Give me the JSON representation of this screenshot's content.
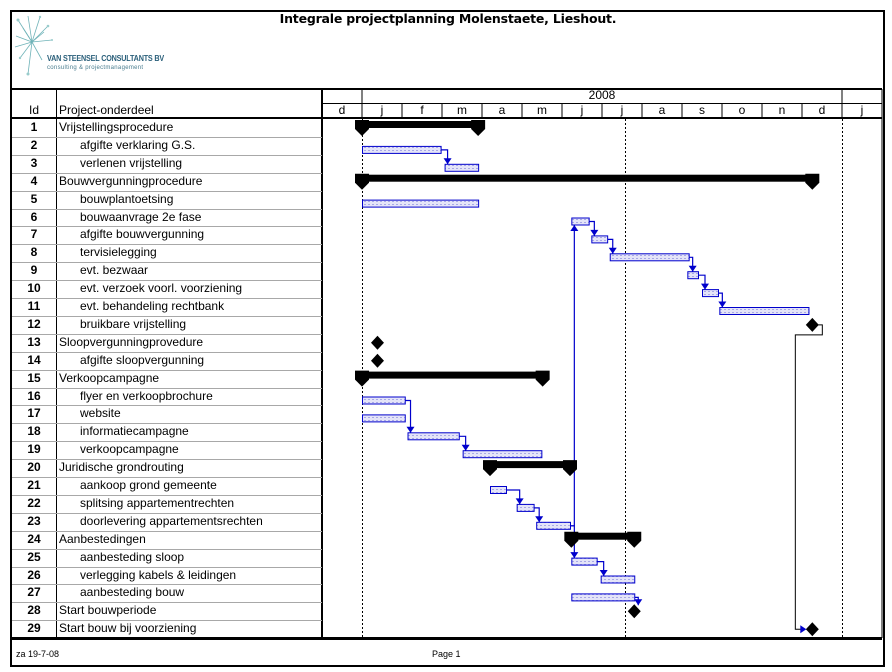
{
  "header": {
    "title": "Integrale projectplanning Molenstaete, Lieshout.",
    "logo_name": "VAN STEENSEL CONSULTANTS BV",
    "logo_tagline": "consulting & projectmanagement"
  },
  "table": {
    "col_id": "Id",
    "col_name": "Project-onderdeel"
  },
  "chart_data": {
    "type": "gantt",
    "year_label": "2008",
    "timescale": [
      {
        "label": "d",
        "year": 2007,
        "month": 12
      },
      {
        "label": "j",
        "year": 2008,
        "month": 1
      },
      {
        "label": "f",
        "year": 2008,
        "month": 2
      },
      {
        "label": "m",
        "year": 2008,
        "month": 3
      },
      {
        "label": "a",
        "year": 2008,
        "month": 4
      },
      {
        "label": "m",
        "year": 2008,
        "month": 5
      },
      {
        "label": "j",
        "year": 2008,
        "month": 6
      },
      {
        "label": "j",
        "year": 2008,
        "month": 7
      },
      {
        "label": "a",
        "year": 2008,
        "month": 8
      },
      {
        "label": "s",
        "year": 2008,
        "month": 9
      },
      {
        "label": "o",
        "year": 2008,
        "month": 10
      },
      {
        "label": "n",
        "year": 2008,
        "month": 11
      },
      {
        "label": "d",
        "year": 2008,
        "month": 12
      },
      {
        "label": "j",
        "year": 2009,
        "month": 1
      }
    ],
    "date_markers": [
      "2008-01-01",
      "2008-07-19",
      "2009-01-01"
    ],
    "tasks": [
      {
        "id": "1",
        "name": "Vrijstellingsprocedure",
        "level": 0,
        "type": "summary",
        "start": "2008-01-01",
        "finish": "2008-03-29"
      },
      {
        "id": "2",
        "name": "afgifte verklaring G.S.",
        "level": 1,
        "type": "task",
        "start": "2008-01-01",
        "finish": "2008-02-29"
      },
      {
        "id": "3",
        "name": "verlenen vrijstelling",
        "level": 1,
        "type": "task",
        "start": "2008-03-03",
        "finish": "2008-03-29"
      },
      {
        "id": "4",
        "name": "Bouwvergunningprocedure",
        "level": 0,
        "type": "summary",
        "start": "2008-01-01",
        "finish": "2008-12-09"
      },
      {
        "id": "5",
        "name": "bouwplantoetsing",
        "level": 1,
        "type": "task",
        "start": "2008-01-01",
        "finish": "2008-03-29"
      },
      {
        "id": "6",
        "name": "bouwaanvrage 2e fase",
        "level": 1,
        "type": "task",
        "start": "2008-06-08",
        "finish": "2008-06-21"
      },
      {
        "id": "7",
        "name": "afgifte bouwvergunning",
        "level": 1,
        "type": "task",
        "start": "2008-06-23",
        "finish": "2008-07-05"
      },
      {
        "id": "8",
        "name": "tervisielegging",
        "level": 1,
        "type": "task",
        "start": "2008-07-07",
        "finish": "2008-09-06"
      },
      {
        "id": "9",
        "name": "evt. bezwaar",
        "level": 1,
        "type": "task",
        "start": "2008-09-05",
        "finish": "2008-09-13"
      },
      {
        "id": "10",
        "name": "evt. verzoek voorl. voorziening",
        "level": 1,
        "type": "task",
        "start": "2008-09-16",
        "finish": "2008-09-28"
      },
      {
        "id": "11",
        "name": "evt. behandeling rechtbank",
        "level": 1,
        "type": "task",
        "start": "2008-09-29",
        "finish": "2008-12-06"
      },
      {
        "id": "12",
        "name": "bruikbare vrijstelling",
        "level": 1,
        "type": "milestone",
        "start": "2008-12-09",
        "finish": "2008-12-09"
      },
      {
        "id": "13",
        "name": "Sloopvergunningprovedure",
        "level": 0,
        "type": "milestone",
        "start": "2008-01-13",
        "finish": "2008-01-13"
      },
      {
        "id": "14",
        "name": "afgifte sloopvergunning",
        "level": 1,
        "type": "milestone",
        "start": "2008-01-13",
        "finish": "2008-01-13"
      },
      {
        "id": "15",
        "name": "Verkoopcampagne",
        "level": 0,
        "type": "summary",
        "start": "2008-01-01",
        "finish": "2008-05-17"
      },
      {
        "id": "16",
        "name": "flyer en verkoopbrochure",
        "level": 1,
        "type": "task",
        "start": "2008-01-01",
        "finish": "2008-02-03"
      },
      {
        "id": "17",
        "name": "website",
        "level": 1,
        "type": "task",
        "start": "2008-01-01",
        "finish": "2008-02-03"
      },
      {
        "id": "18",
        "name": "informatiecampagne",
        "level": 1,
        "type": "task",
        "start": "2008-02-05",
        "finish": "2008-03-14"
      },
      {
        "id": "19",
        "name": "verkoopcampagne",
        "level": 1,
        "type": "task",
        "start": "2008-03-17",
        "finish": "2008-05-16"
      },
      {
        "id": "20",
        "name": "Juridische grondrouting",
        "level": 0,
        "type": "summary",
        "start": "2008-04-07",
        "finish": "2008-06-07"
      },
      {
        "id": "21",
        "name": "aankoop grond gemeente",
        "level": 1,
        "type": "task",
        "start": "2008-04-07",
        "finish": "2008-04-19"
      },
      {
        "id": "22",
        "name": "splitsing appartementrechten",
        "level": 1,
        "type": "task",
        "start": "2008-04-27",
        "finish": "2008-05-10"
      },
      {
        "id": "23",
        "name": "doorlevering appartementsrechten",
        "level": 1,
        "type": "task",
        "start": "2008-05-12",
        "finish": "2008-06-07"
      },
      {
        "id": "24",
        "name": "Aanbestedingen",
        "level": 0,
        "type": "summary",
        "start": "2008-06-08",
        "finish": "2008-07-26"
      },
      {
        "id": "25",
        "name": "aanbesteding sloop",
        "level": 1,
        "type": "task",
        "start": "2008-06-08",
        "finish": "2008-06-27"
      },
      {
        "id": "26",
        "name": "verlegging kabels & leidingen",
        "level": 1,
        "type": "task",
        "start": "2008-06-30",
        "finish": "2008-07-26"
      },
      {
        "id": "27",
        "name": "aanbesteding bouw",
        "level": 1,
        "type": "task",
        "start": "2008-06-08",
        "finish": "2008-07-26"
      },
      {
        "id": "28",
        "name": "Start bouwperiode",
        "level": 0,
        "type": "milestone",
        "start": "2008-07-26",
        "finish": "2008-07-26"
      },
      {
        "id": "29",
        "name": "Start bouw bij voorziening",
        "level": 0,
        "type": "milestone",
        "start": "2008-12-09",
        "finish": "2008-12-09"
      }
    ],
    "links": [
      [
        "2",
        "3"
      ],
      [
        "6",
        "7"
      ],
      [
        "7",
        "8"
      ],
      [
        "8",
        "9"
      ],
      [
        "9",
        "10"
      ],
      [
        "10",
        "11"
      ],
      [
        "12",
        "29"
      ],
      [
        "16",
        "18"
      ],
      [
        "18",
        "19"
      ],
      [
        "21",
        "22"
      ],
      [
        "22",
        "23"
      ],
      [
        "23",
        "6"
      ],
      [
        "23",
        "25"
      ],
      [
        "25",
        "26"
      ],
      [
        "27",
        "28"
      ]
    ],
    "colors": {
      "task_border": "#0000cc",
      "task_fill": "#d4d4f4",
      "summary": "#000000",
      "milestone": "#000000",
      "link": "#0000cc"
    }
  },
  "footer": {
    "date": "za 19-7-08",
    "page": "Page 1"
  }
}
